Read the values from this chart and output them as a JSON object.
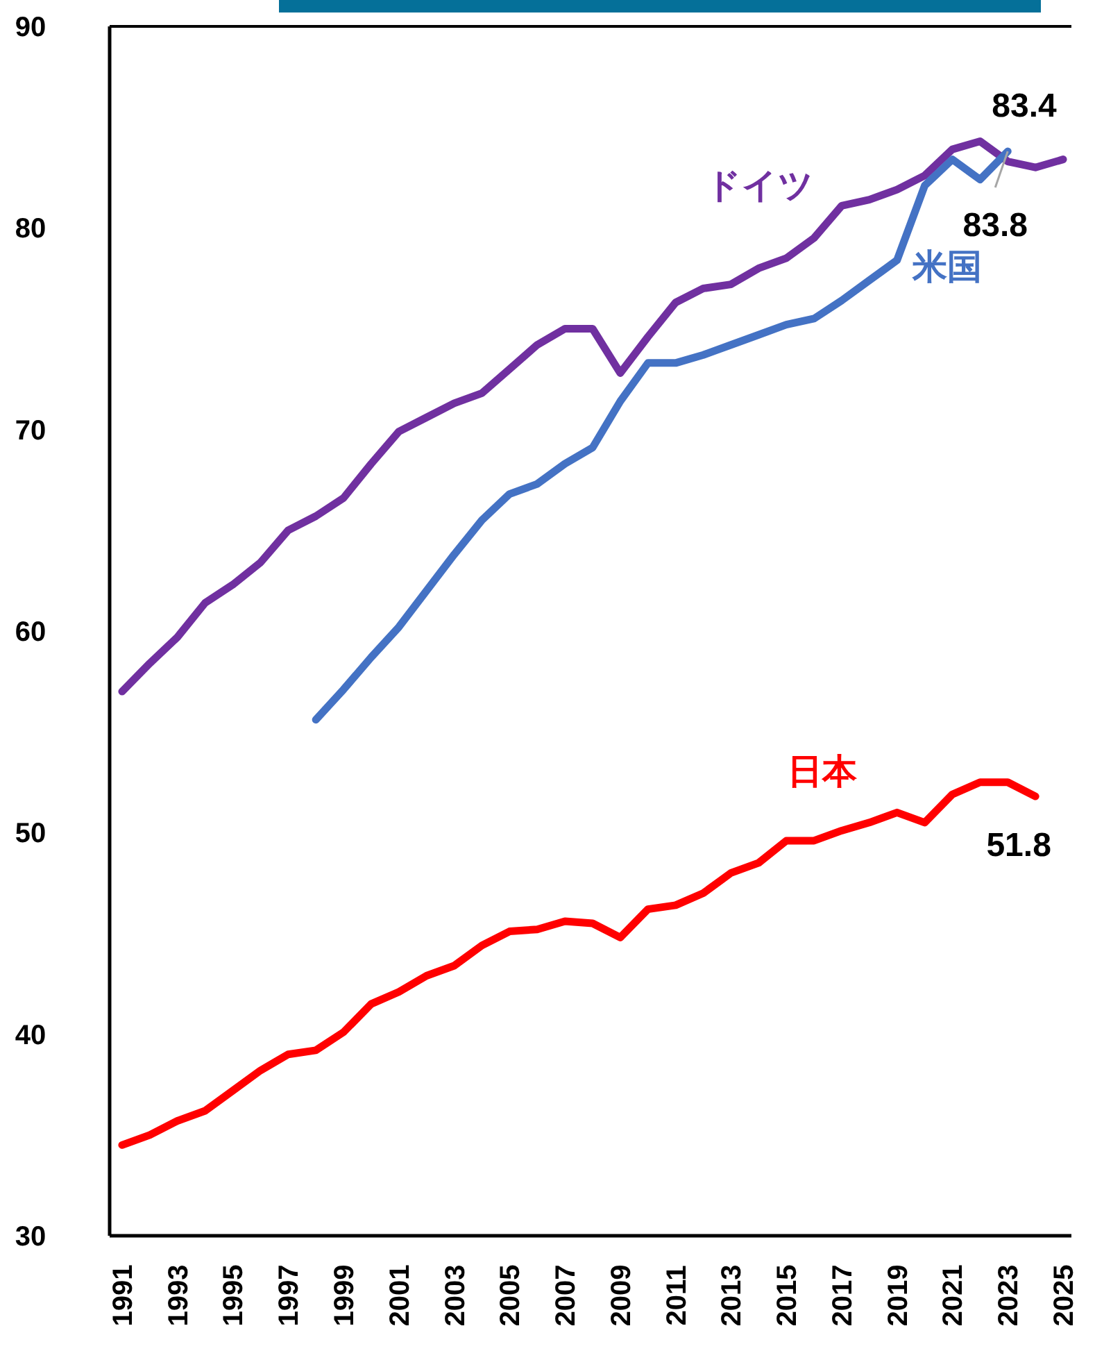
{
  "chart_data": {
    "type": "line",
    "x": [
      1991,
      1992,
      1993,
      1994,
      1995,
      1996,
      1997,
      1998,
      1999,
      2000,
      2001,
      2002,
      2003,
      2004,
      2005,
      2006,
      2007,
      2008,
      2009,
      2010,
      2011,
      2012,
      2013,
      2014,
      2015,
      2016,
      2017,
      2018,
      2019,
      2020,
      2021,
      2022,
      2023,
      2024,
      2025
    ],
    "series": [
      {
        "name": "ドイツ",
        "color": "#7030a0",
        "values": [
          57.0,
          58.4,
          59.7,
          61.4,
          62.3,
          63.4,
          65.0,
          65.7,
          66.6,
          68.3,
          69.9,
          70.6,
          71.3,
          71.8,
          73.0,
          74.2,
          75.0,
          75.0,
          72.8,
          74.6,
          76.3,
          77.0,
          77.2,
          78.0,
          78.5,
          79.5,
          81.1,
          81.4,
          81.9,
          82.6,
          83.9,
          84.3,
          83.3,
          83.0,
          83.4
        ]
      },
      {
        "name": "米国",
        "color": "#4472c4",
        "values": [
          null,
          null,
          null,
          null,
          null,
          null,
          null,
          55.6,
          57.1,
          58.7,
          60.2,
          62.0,
          63.8,
          65.5,
          66.8,
          67.3,
          68.3,
          69.1,
          71.4,
          73.3,
          73.3,
          73.7,
          74.2,
          74.7,
          75.2,
          75.5,
          76.4,
          77.4,
          78.4,
          82.1,
          83.4,
          82.4,
          83.8,
          null,
          null
        ]
      },
      {
        "name": "日本",
        "color": "#ff0000",
        "values": [
          34.5,
          35.0,
          35.7,
          36.2,
          37.2,
          38.2,
          39.0,
          39.2,
          40.1,
          41.5,
          42.1,
          42.9,
          43.4,
          44.4,
          45.1,
          45.2,
          45.6,
          45.5,
          44.8,
          46.2,
          46.4,
          47.0,
          48.0,
          48.5,
          49.6,
          49.6,
          50.1,
          50.5,
          51.0,
          50.5,
          51.9,
          52.5,
          52.5,
          51.8,
          null
        ]
      }
    ],
    "xlim": [
      1990.55,
      2025.3
    ],
    "xticks": [
      1991,
      1993,
      1995,
      1997,
      1999,
      2001,
      2003,
      2005,
      2007,
      2009,
      2011,
      2013,
      2015,
      2017,
      2019,
      2021,
      2023,
      2025
    ],
    "ylim": [
      30,
      90
    ],
    "yticks": [
      30,
      40,
      50,
      60,
      70,
      80,
      90
    ],
    "grid": false,
    "legend": false,
    "marker": "none",
    "line_style": "solid",
    "annotations": [
      {
        "text": "83.4",
        "x": 2025,
        "y": 83.4
      },
      {
        "text": "83.8",
        "x": 2023,
        "y": 83.8
      },
      {
        "text": "51.8",
        "x": 2024,
        "y": 51.8
      }
    ]
  }
}
